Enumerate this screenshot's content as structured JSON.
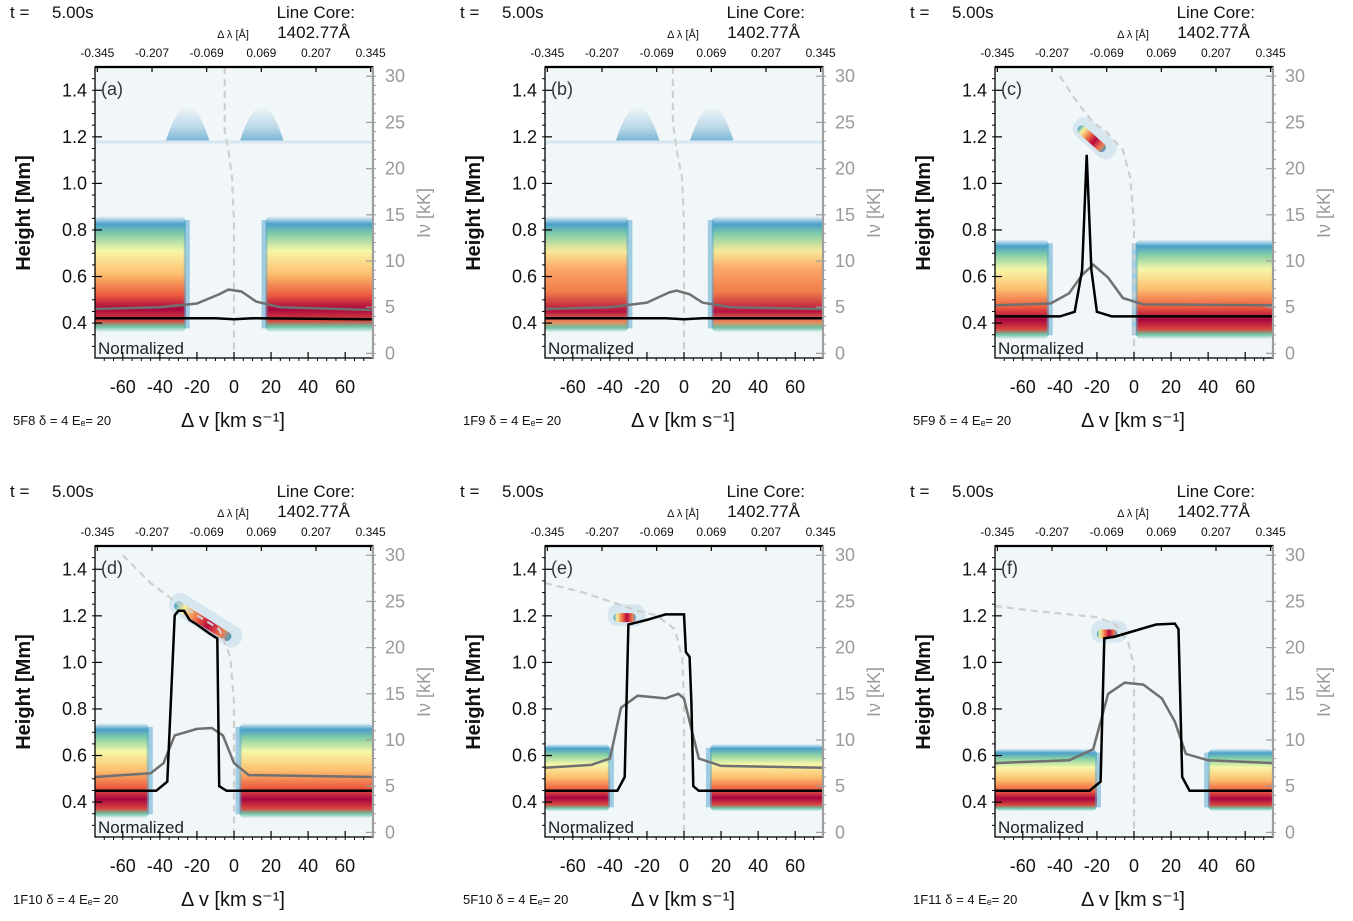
{
  "figure": {
    "time_label": "t =",
    "time_value": "5.00s",
    "line_core_label": "Line Core:",
    "line_core_value": "1402.77Å",
    "top_axis_label": "Δ λ [Å]",
    "top_ticks": [
      "-0.345",
      "-0.207",
      "-0.069",
      "0.069",
      "0.207",
      "0.345"
    ],
    "x_label": "Δ v [km s⁻¹]",
    "y_label": "Height [Mm]",
    "right_label": "Iν [kK]",
    "normalized_label": "Normalized",
    "x_ticks": [
      "-60",
      "-40",
      "-20",
      "0",
      "20",
      "40",
      "60"
    ],
    "y_ticks": [
      "0.4",
      "0.6",
      "0.8",
      "1.0",
      "1.2",
      "1.4"
    ],
    "right_ticks": [
      "0",
      "5",
      "10",
      "15",
      "20",
      "25",
      "30"
    ]
  },
  "chart_data": [
    {
      "type": "heatmap",
      "panel": "(a)",
      "model": "5F8 δ = 4 Eₑ= 20",
      "xlim": [
        -75,
        75
      ],
      "ylim": [
        0.25,
        1.5
      ],
      "y2lim": [
        -0.5,
        31
      ],
      "band": {
        "y_lo": 0.36,
        "y_hi": 0.86,
        "peak": 0.46,
        "pal": "hot",
        "x_left": -26,
        "x_right": 17
      },
      "tcf_peak": {
        "y": 1.18,
        "x1": -25,
        "x2": 15
      },
      "intensity_black": [
        [
          -75,
          3.8
        ],
        [
          -40,
          3.8
        ],
        [
          -10,
          3.8
        ],
        [
          0,
          3.7
        ],
        [
          10,
          3.8
        ],
        [
          75,
          3.7
        ]
      ],
      "intensity_gray": [
        [
          -75,
          4.8
        ],
        [
          -40,
          5.0
        ],
        [
          -20,
          5.4
        ],
        [
          -8,
          6.4
        ],
        [
          -3,
          6.9
        ],
        [
          4,
          6.7
        ],
        [
          12,
          5.6
        ],
        [
          25,
          5.0
        ],
        [
          75,
          4.7
        ]
      ],
      "tau_dashed": [
        [
          -5,
          31
        ],
        [
          -5,
          24
        ],
        [
          -3,
          22
        ],
        [
          -1,
          19
        ],
        [
          0,
          14
        ],
        [
          0,
          0
        ]
      ]
    },
    {
      "type": "heatmap",
      "panel": "(b)",
      "model": "1F9 δ = 4 Eₑ= 20",
      "xlim": [
        -75,
        75
      ],
      "ylim": [
        0.25,
        1.5
      ],
      "y2lim": [
        -0.5,
        31
      ],
      "band": {
        "y_lo": 0.36,
        "y_hi": 0.86,
        "peak": 0.44,
        "pal": "warm",
        "x_left": -30,
        "x_right": 15
      },
      "tcf_peak": {
        "y": 1.18,
        "x1": -25,
        "x2": 15
      },
      "intensity_black": [
        [
          -75,
          3.8
        ],
        [
          -40,
          3.8
        ],
        [
          -10,
          3.8
        ],
        [
          0,
          3.7
        ],
        [
          10,
          3.8
        ],
        [
          75,
          3.8
        ]
      ],
      "intensity_gray": [
        [
          -75,
          4.8
        ],
        [
          -40,
          5.0
        ],
        [
          -20,
          5.5
        ],
        [
          -8,
          6.6
        ],
        [
          -4,
          6.8
        ],
        [
          3,
          6.4
        ],
        [
          10,
          5.5
        ],
        [
          25,
          5.0
        ],
        [
          75,
          4.8
        ]
      ],
      "tau_dashed": [
        [
          -6,
          31
        ],
        [
          -6,
          25
        ],
        [
          -4,
          22
        ],
        [
          -1,
          19
        ],
        [
          0,
          14
        ],
        [
          0,
          0
        ]
      ]
    },
    {
      "type": "heatmap",
      "panel": "(c)",
      "model": "5F9 δ = 4 Eₑ= 20",
      "xlim": [
        -75,
        75
      ],
      "ylim": [
        0.25,
        1.5
      ],
      "y2lim": [
        -0.5,
        31
      ],
      "band": {
        "y_lo": 0.33,
        "y_hi": 0.76,
        "peak": 0.66,
        "pal": "hot",
        "x_left": -46,
        "x_right": 1
      },
      "streak": {
        "x1": -30,
        "y1": 1.24,
        "x2": -16,
        "y2": 1.14
      },
      "intensity_black": [
        [
          -75,
          4.0
        ],
        [
          -40,
          4.0
        ],
        [
          -32,
          4.5
        ],
        [
          -28,
          9
        ],
        [
          -25.5,
          21.5
        ],
        [
          -23,
          9
        ],
        [
          -20,
          4.5
        ],
        [
          -12,
          4.0
        ],
        [
          75,
          4.0
        ]
      ],
      "intensity_gray": [
        [
          -75,
          5.2
        ],
        [
          -45,
          5.4
        ],
        [
          -35,
          6.5
        ],
        [
          -28,
          8.5
        ],
        [
          -22,
          9.6
        ],
        [
          -14,
          8.2
        ],
        [
          -6,
          6.0
        ],
        [
          5,
          5.3
        ],
        [
          75,
          5.2
        ]
      ],
      "tau_dashed": [
        [
          -40,
          30
        ],
        [
          -30,
          27
        ],
        [
          -22,
          25
        ],
        [
          -15,
          24
        ],
        [
          -6,
          22
        ],
        [
          -2,
          19
        ],
        [
          0,
          14
        ],
        [
          0,
          0
        ]
      ]
    },
    {
      "type": "heatmap",
      "panel": "(d)",
      "model": "1F10 δ = 4 Eₑ= 20",
      "xlim": [
        -75,
        75
      ],
      "ylim": [
        0.25,
        1.5
      ],
      "y2lim": [
        -0.5,
        31
      ],
      "band": {
        "y_lo": 0.33,
        "y_hi": 0.74,
        "peak": 0.61,
        "pal": "hot",
        "x_left": -46,
        "x_right": 3
      },
      "streak": {
        "x1": -32,
        "y1": 1.25,
        "x2": -2,
        "y2": 1.1
      },
      "intensity_black": [
        [
          -75,
          4.5
        ],
        [
          -42,
          4.5
        ],
        [
          -36,
          5.5
        ],
        [
          -32,
          23.5
        ],
        [
          -30,
          24
        ],
        [
          -27,
          24
        ],
        [
          -24,
          23
        ],
        [
          -20,
          22.5
        ],
        [
          -13,
          21.5
        ],
        [
          -9,
          21
        ],
        [
          -8,
          5
        ],
        [
          -4,
          4.5
        ],
        [
          75,
          4.5
        ]
      ],
      "intensity_gray": [
        [
          -75,
          6.0
        ],
        [
          -45,
          6.4
        ],
        [
          -38,
          7.5
        ],
        [
          -32,
          10.5
        ],
        [
          -20,
          11.2
        ],
        [
          -12,
          11.3
        ],
        [
          -6,
          10.5
        ],
        [
          0,
          7.5
        ],
        [
          8,
          6.2
        ],
        [
          75,
          6.0
        ]
      ],
      "tau_dashed": [
        [
          -60,
          30
        ],
        [
          -45,
          27
        ],
        [
          -32,
          25
        ],
        [
          -20,
          23.5
        ],
        [
          -8,
          22
        ],
        [
          -2,
          19
        ],
        [
          0,
          14
        ],
        [
          0,
          0
        ]
      ]
    },
    {
      "type": "heatmap",
      "panel": "(e)",
      "model": "5F10 δ = 4 Eₑ= 20",
      "xlim": [
        -75,
        75
      ],
      "ylim": [
        0.25,
        1.5
      ],
      "y2lim": [
        -0.5,
        31
      ],
      "band": {
        "y_lo": 0.36,
        "y_hi": 0.65,
        "peak": 0.55,
        "pal": "hot",
        "x_left": -40,
        "x_right": 14
      },
      "streak": {
        "x1": -38,
        "y1": 1.19,
        "x2": -26,
        "y2": 1.19
      },
      "intensity_black": [
        [
          -75,
          4.5
        ],
        [
          -36,
          4.5
        ],
        [
          -32,
          6
        ],
        [
          -30,
          22.5
        ],
        [
          -20,
          23
        ],
        [
          -10,
          23.6
        ],
        [
          0,
          23.6
        ],
        [
          1,
          19.5
        ],
        [
          3,
          19
        ],
        [
          4,
          14
        ],
        [
          5,
          5
        ],
        [
          8,
          4.5
        ],
        [
          75,
          4.5
        ]
      ],
      "intensity_gray": [
        [
          -75,
          7.0
        ],
        [
          -50,
          7.3
        ],
        [
          -40,
          8
        ],
        [
          -34,
          13.5
        ],
        [
          -25,
          14.8
        ],
        [
          -10,
          14.5
        ],
        [
          -3,
          15
        ],
        [
          0,
          14.5
        ],
        [
          3,
          12
        ],
        [
          8,
          8
        ],
        [
          20,
          7.2
        ],
        [
          75,
          7.0
        ]
      ],
      "tau_dashed": [
        [
          -75,
          27
        ],
        [
          -55,
          26
        ],
        [
          -40,
          25
        ],
        [
          -25,
          24
        ],
        [
          -15,
          23.5
        ],
        [
          -5,
          22
        ],
        [
          -1,
          19
        ],
        [
          0,
          14
        ],
        [
          0,
          0
        ]
      ]
    },
    {
      "type": "heatmap",
      "panel": "(f)",
      "model": "1F11 δ = 4 Eₑ= 20",
      "xlim": [
        -75,
        75
      ],
      "ylim": [
        0.25,
        1.5
      ],
      "y2lim": [
        -0.5,
        31
      ],
      "band": {
        "y_lo": 0.36,
        "y_hi": 0.63,
        "peak": 0.53,
        "pal": "hot",
        "x_left": -20,
        "x_right": 40
      },
      "streak": {
        "x1": -20,
        "y1": 1.12,
        "x2": -9,
        "y2": 1.12
      },
      "intensity_black": [
        [
          -75,
          4.5
        ],
        [
          -24,
          4.5
        ],
        [
          -18,
          5.5
        ],
        [
          -16,
          21
        ],
        [
          -10,
          21.2
        ],
        [
          0,
          21.8
        ],
        [
          12,
          22.5
        ],
        [
          22,
          22.6
        ],
        [
          24,
          22
        ],
        [
          26,
          6
        ],
        [
          30,
          4.5
        ],
        [
          75,
          4.5
        ]
      ],
      "intensity_gray": [
        [
          -75,
          7.5
        ],
        [
          -35,
          7.8
        ],
        [
          -22,
          9
        ],
        [
          -14,
          15
        ],
        [
          -5,
          16.2
        ],
        [
          5,
          16
        ],
        [
          15,
          14.5
        ],
        [
          22,
          12
        ],
        [
          28,
          8.5
        ],
        [
          40,
          7.8
        ],
        [
          75,
          7.5
        ]
      ],
      "tau_dashed": [
        [
          -75,
          24.5
        ],
        [
          -55,
          24
        ],
        [
          -35,
          23.6
        ],
        [
          -20,
          23.3
        ],
        [
          -10,
          22.5
        ],
        [
          -3,
          20.5
        ],
        [
          0,
          18
        ],
        [
          0,
          0
        ]
      ]
    }
  ]
}
